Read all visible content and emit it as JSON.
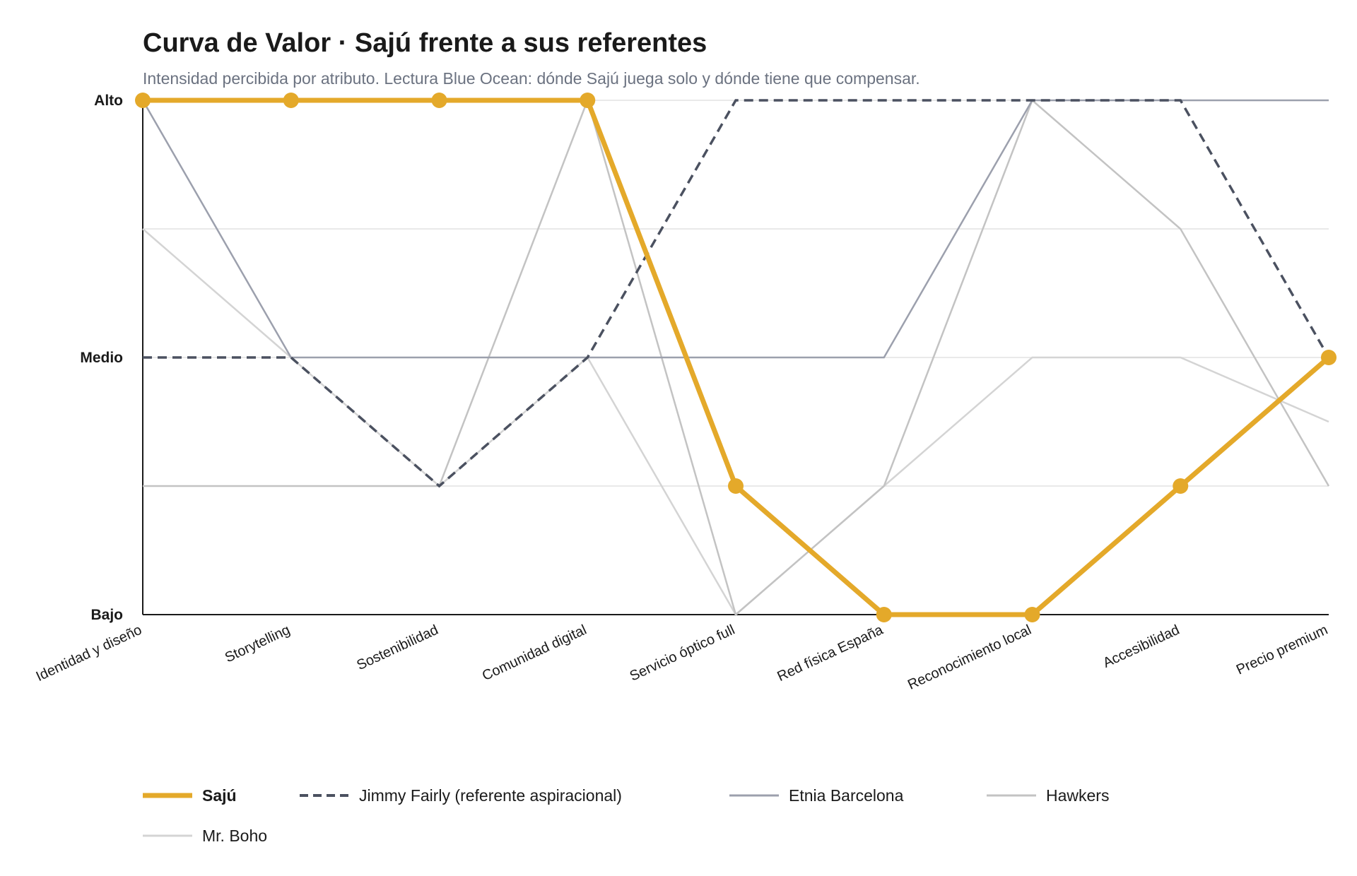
{
  "header": {
    "title": "Curva de Valor · Sajú frente a sus referentes",
    "subtitle": "Intensidad percibida por atributo. Lectura Blue Ocean: dónde Sajú juega solo y dónde tiene que compensar."
  },
  "chart_data": {
    "type": "line",
    "title": "Curva de Valor · Sajú frente a sus referentes",
    "subtitle": "Intensidad percibida por atributo. Lectura Blue Ocean: dónde Sajú juega solo y dónde tiene que compensar.",
    "categories": [
      "Identidad y diseño",
      "Storytelling",
      "Sostenibilidad",
      "Comunidad digital",
      "Servicio óptico full",
      "Red física España",
      "Reconocimiento local",
      "Accesibilidad",
      "Precio premium"
    ],
    "ylim": [
      1,
      3
    ],
    "y_ticks": [
      {
        "value": 1,
        "label": "Bajo"
      },
      {
        "value": 2,
        "label": "Medio"
      },
      {
        "value": 3,
        "label": "Alto"
      }
    ],
    "grid": true,
    "legend_position": "bottom",
    "series": [
      {
        "name": "Mr. Boho",
        "values": [
          2.5,
          2,
          1.5,
          2,
          1,
          1.5,
          2,
          2,
          1.75
        ],
        "color": "#d4d4d4",
        "style": "solid",
        "width": 2.5,
        "markers": false
      },
      {
        "name": "Hawkers",
        "values": [
          1.5,
          1.5,
          1.5,
          3,
          1,
          1.5,
          3,
          2.5,
          1.5
        ],
        "color": "#c3c3c3",
        "style": "solid",
        "width": 2.5,
        "markers": false
      },
      {
        "name": "Etnia Barcelona",
        "values": [
          3,
          2,
          2,
          2,
          2,
          2,
          3,
          3,
          3
        ],
        "color": "#9ca0ad",
        "style": "solid",
        "width": 2.5,
        "markers": false
      },
      {
        "name": "Jimmy Fairly (referente aspiracional)",
        "values": [
          2,
          2,
          1.5,
          2,
          3,
          3,
          3,
          3,
          2
        ],
        "color": "#4b5160",
        "style": "dashed",
        "width": 3.5,
        "markers": false
      },
      {
        "name": "Sajú",
        "values": [
          3,
          3,
          3,
          3,
          1.5,
          1,
          1,
          1.5,
          2
        ],
        "color": "#e4a92a",
        "style": "solid",
        "width": 7,
        "markers": true
      }
    ]
  },
  "legend": {
    "items": [
      {
        "label": "Sajú",
        "color": "#e4a92a",
        "style": "solid",
        "bold": true
      },
      {
        "label": "Jimmy Fairly (referente aspiracional)",
        "color": "#4b5160",
        "style": "dashed",
        "bold": false
      },
      {
        "label": "Etnia Barcelona",
        "color": "#9ca0ad",
        "style": "solid",
        "bold": false
      },
      {
        "label": "Hawkers",
        "color": "#c3c3c3",
        "style": "solid",
        "bold": false
      },
      {
        "label": "Mr. Boho",
        "color": "#d4d4d4",
        "style": "solid",
        "bold": false
      }
    ]
  }
}
